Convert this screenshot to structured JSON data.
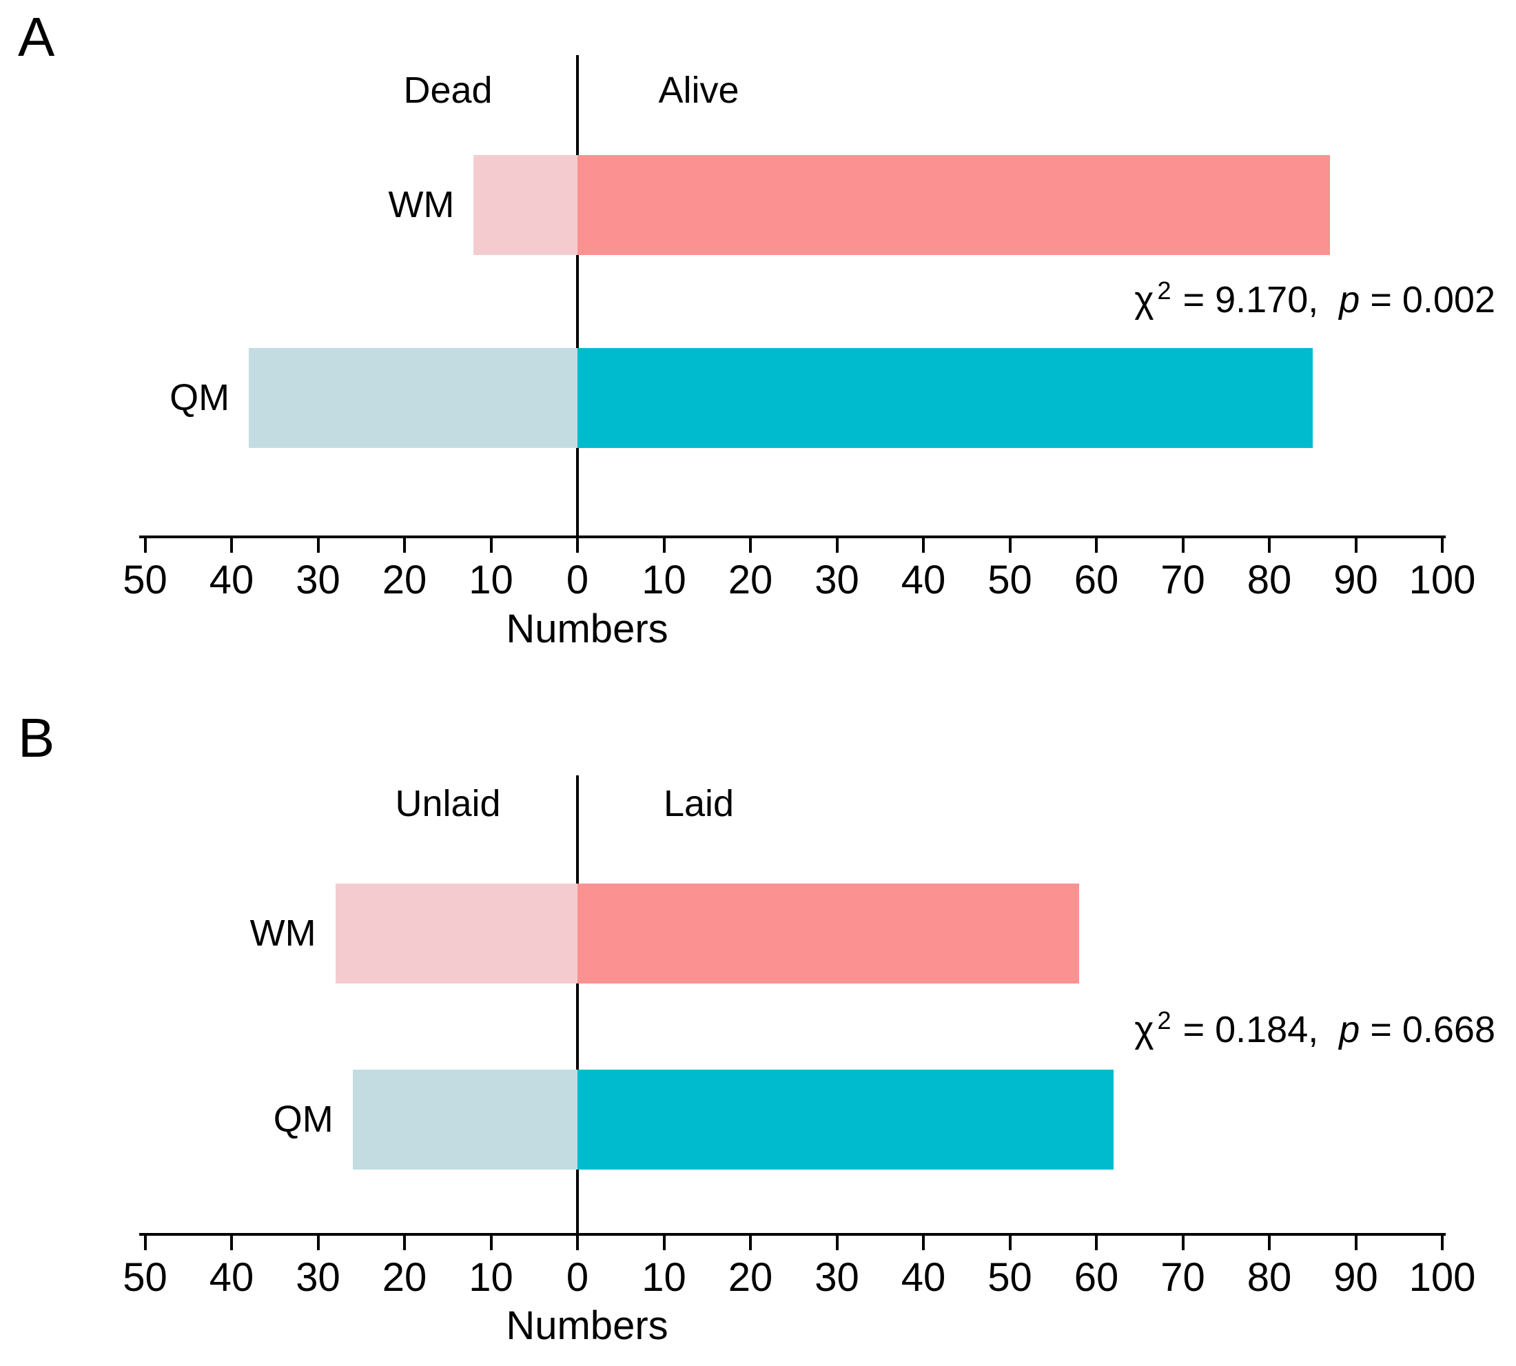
{
  "page": {
    "background": "#FFFFFF",
    "description": "Two-panel diverging horizontal bar chart comparing WM and QM groups"
  },
  "colors": {
    "pink_light": "#F4CCD0",
    "pink_strong": "#FB9191",
    "teal_light": "#C3DCE2",
    "teal_strong": "#00BBCE",
    "axis_line": "#000000",
    "text": "#000000"
  },
  "chart_data": [
    {
      "panel_label": "A",
      "type": "bar",
      "subtype": "diverging-horizontal",
      "left_header": "Dead",
      "right_header": "Alive",
      "categories": [
        "WM",
        "QM"
      ],
      "series": [
        {
          "name": "Dead",
          "side": "left",
          "values": [
            12,
            38
          ],
          "color_keys": [
            "pink_light",
            "teal_light"
          ]
        },
        {
          "name": "Alive",
          "side": "right",
          "values": [
            87,
            85
          ],
          "color_keys": [
            "pink_strong",
            "teal_strong"
          ]
        }
      ],
      "statistics": {
        "chi_square": 9.17,
        "p_value": 0.002
      },
      "annotation": {
        "chi_symbol": "χ",
        "chi_exponent": "2",
        "chi_equals": " = 9.170,  ",
        "p_symbol": "p",
        "p_equals": " = 0.002"
      },
      "xlabel": "Numbers",
      "xlim": [
        -50,
        100
      ],
      "tick_step": 10,
      "tick_labels": [
        "50",
        "40",
        "30",
        "20",
        "10",
        "0",
        "10",
        "20",
        "30",
        "40",
        "50",
        "60",
        "70",
        "80",
        "90",
        "100"
      ],
      "grid": false,
      "legend": "none"
    },
    {
      "panel_label": "B",
      "type": "bar",
      "subtype": "diverging-horizontal",
      "left_header": "Unlaid",
      "right_header": "Laid",
      "categories": [
        "WM",
        "QM"
      ],
      "series": [
        {
          "name": "Unlaid",
          "side": "left",
          "values": [
            28,
            26
          ],
          "color_keys": [
            "pink_light",
            "teal_light"
          ]
        },
        {
          "name": "Laid",
          "side": "right",
          "values": [
            58,
            62
          ],
          "color_keys": [
            "pink_strong",
            "teal_strong"
          ]
        }
      ],
      "statistics": {
        "chi_square": 0.184,
        "p_value": 0.668
      },
      "annotation": {
        "chi_symbol": "χ",
        "chi_exponent": "2",
        "chi_equals": " = 0.184,  ",
        "p_symbol": "p",
        "p_equals": " = 0.668"
      },
      "xlabel": "Numbers",
      "xlim": [
        -50,
        100
      ],
      "tick_step": 10,
      "tick_labels": [
        "50",
        "40",
        "30",
        "20",
        "10",
        "0",
        "10",
        "20",
        "30",
        "40",
        "50",
        "60",
        "70",
        "80",
        "90",
        "100"
      ],
      "grid": false,
      "legend": "none"
    }
  ]
}
